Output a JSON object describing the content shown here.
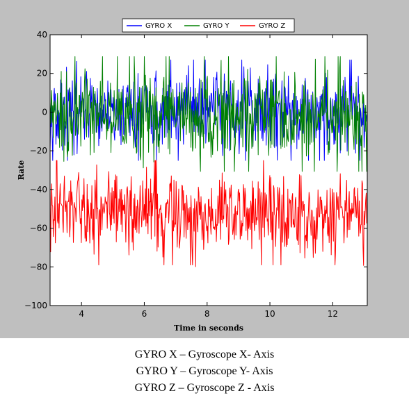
{
  "chart_data": {
    "type": "line",
    "title": "",
    "xlabel": "Time in seconds",
    "ylabel": "Rate",
    "xlim": [
      3.0,
      13.1
    ],
    "ylim": [
      -100,
      40
    ],
    "xticks": [
      4,
      6,
      8,
      10,
      12
    ],
    "yticks": [
      40,
      20,
      0,
      -20,
      -40,
      -60,
      -80,
      -100
    ],
    "legend_position": "top-center",
    "grid": false,
    "series": [
      {
        "name": "GYRO X",
        "color": "#0000ff",
        "mean": 0,
        "spread": 10,
        "min": -25,
        "max": 30
      },
      {
        "name": "GYRO Y",
        "color": "#008000",
        "mean": -1,
        "spread": 11,
        "min": -32,
        "max": 31
      },
      {
        "name": "GYRO Z",
        "color": "#ff0000",
        "mean": -52,
        "spread": 10,
        "min": -82,
        "max": -23
      }
    ]
  },
  "caption": [
    "GYRO X – Gyroscope X- Axis",
    "GYRO Y – Gyroscope Y- Axis",
    "GYRO Z – Gyroscope Z - Axis"
  ]
}
